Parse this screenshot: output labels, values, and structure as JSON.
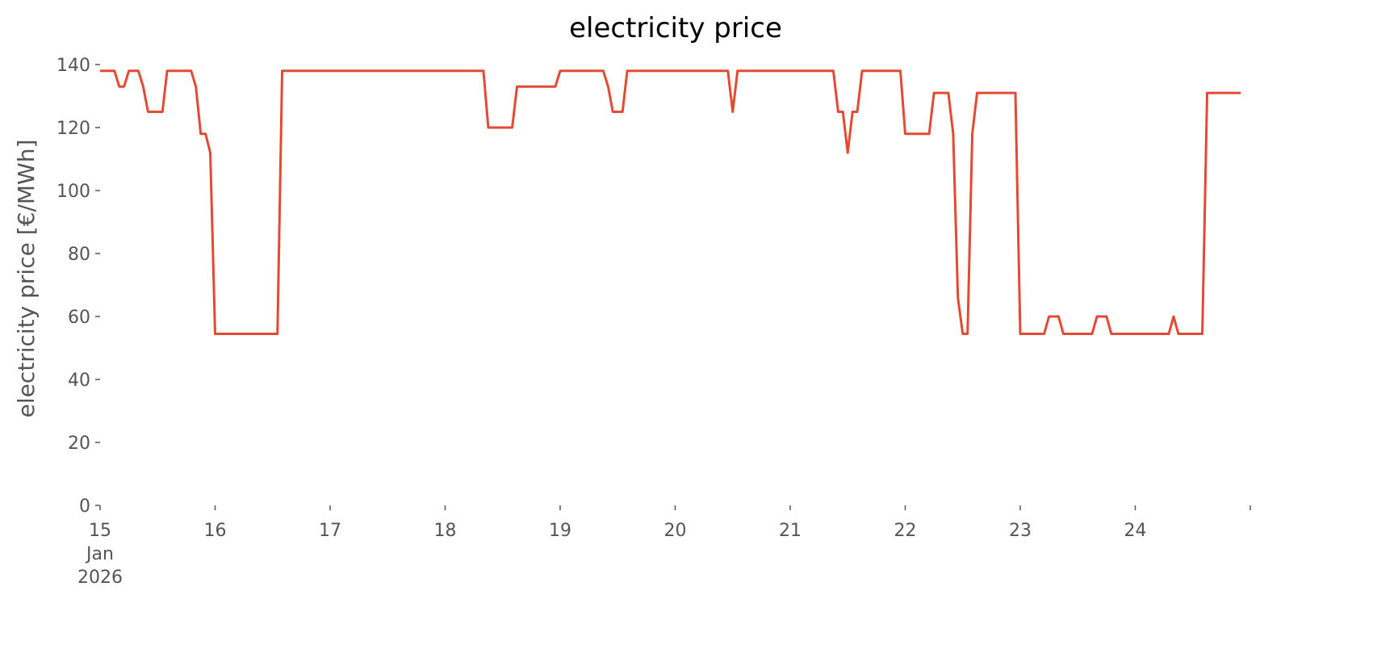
{
  "chart_data": {
    "type": "line",
    "title": "electricity price",
    "ylabel": "electricity price [€/MWh]",
    "x": [
      15,
      15.125,
      15.167,
      15.208,
      15.25,
      15.333,
      15.375,
      15.417,
      15.542,
      15.583,
      15.792,
      15.833,
      15.875,
      15.917,
      15.958,
      16,
      16.542,
      16.583,
      18.333,
      18.375,
      18.583,
      18.625,
      18.958,
      19,
      19.375,
      19.417,
      19.458,
      19.542,
      19.583,
      20.458,
      20.5,
      20.542,
      21.375,
      21.417,
      21.458,
      21.5,
      21.542,
      21.583,
      21.625,
      21.958,
      22,
      22.208,
      22.25,
      22.375,
      22.417,
      22.458,
      22.5,
      22.542,
      22.583,
      22.625,
      22.958,
      23,
      23.208,
      23.25,
      23.333,
      23.375,
      23.625,
      23.667,
      23.75,
      23.792,
      24.292,
      24.333,
      24.375,
      24.583,
      24.625,
      24.917
    ],
    "series": [
      {
        "name": "electricity price",
        "color": "#e24a33",
        "values": [
          138,
          138,
          133,
          133,
          138,
          138,
          133,
          125,
          125,
          138,
          138,
          133,
          118,
          118,
          112,
          54.5,
          54.5,
          138,
          138,
          120,
          120,
          133,
          133,
          138,
          138,
          133,
          125,
          125,
          138,
          138,
          125,
          138,
          138,
          125,
          125,
          112,
          125,
          125,
          138,
          138,
          118,
          118,
          131,
          131,
          118,
          66,
          54.5,
          54.5,
          118,
          131,
          131,
          54.5,
          54.5,
          60,
          60,
          54.5,
          54.5,
          60,
          60,
          54.5,
          54.5,
          60,
          54.5,
          54.5,
          131,
          131
        ]
      }
    ],
    "xlim": [
      15,
      25
    ],
    "xticks": [
      {
        "value": 15,
        "label": "15 Jan 2026"
      },
      16,
      17,
      18,
      19,
      20,
      21,
      22,
      23,
      24
    ],
    "ylim": [
      0,
      140
    ],
    "yticks": [
      0,
      20,
      40,
      60,
      80,
      100,
      120,
      140
    ],
    "grid": false
  }
}
